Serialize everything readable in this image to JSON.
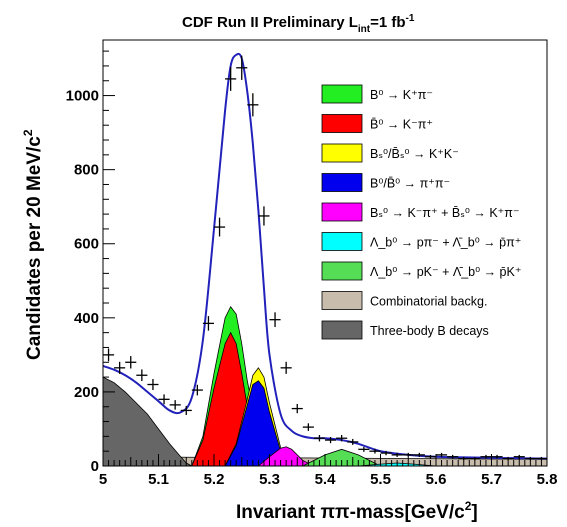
{
  "chart_data": {
    "type": "area",
    "title": {
      "main": "CDF Run II  Preliminary L",
      "sub": "int",
      "eq": "=1 fb",
      "sup": "-1"
    },
    "xlabel": {
      "main": "Invariant ππ-mass[GeV/c",
      "sup": "2",
      "close": "]"
    },
    "ylabel": {
      "main": "Candidates per 20 MeV/c",
      "sup": "2"
    },
    "xlim": [
      5.0,
      5.8
    ],
    "ylim": [
      0,
      1150
    ],
    "x_ticks": [
      5,
      5.1,
      5.2,
      5.3,
      5.4,
      5.5,
      5.6,
      5.7,
      5.8
    ],
    "x_tick_labels": [
      "5",
      "5.1",
      "5.2",
      "5.3",
      "5.4",
      "5.5",
      "5.6",
      "5.7",
      "5.8"
    ],
    "y_ticks": [
      0,
      200,
      400,
      600,
      800,
      1000
    ],
    "y_tick_labels": [
      "0",
      "200",
      "400",
      "600",
      "800",
      "1000"
    ],
    "grid": false,
    "legend_position": "right",
    "legend": [
      {
        "name": "B⁰ → K⁺π⁻",
        "color": "#22ee22"
      },
      {
        "name": "B̄⁰ → K⁻π⁺",
        "color": "#ff0000"
      },
      {
        "name": "Bₛ⁰/B̄ₛ⁰ → K⁺K⁻",
        "color": "#ffff00"
      },
      {
        "name": "B⁰/B̄⁰ → π⁺π⁻",
        "color": "#0000ee"
      },
      {
        "name": "Bₛ⁰ → K⁻π⁺ + B̄ₛ⁰ → K⁺π⁻",
        "color": "#ff00ff"
      },
      {
        "name": "Λ_b⁰ → pπ⁻ + Λ̄_b⁰ → p̄π⁺",
        "color": "#00ffff"
      },
      {
        "name": "Λ_b⁰ → pK⁻ + Λ̄_b⁰ → p̄K⁺",
        "color": "#55dd55"
      },
      {
        "name": "Combinatorial backg.",
        "color": "#c8bcac"
      },
      {
        "name": "Three-body B decays",
        "color": "#666666"
      }
    ],
    "fit_line_color": "#2222bb",
    "data_points": {
      "x": [
        5.01,
        5.03,
        5.05,
        5.07,
        5.09,
        5.11,
        5.13,
        5.15,
        5.17,
        5.19,
        5.21,
        5.23,
        5.25,
        5.27,
        5.29,
        5.31,
        5.33,
        5.35,
        5.37,
        5.39,
        5.41,
        5.43,
        5.45,
        5.47,
        5.49,
        5.51,
        5.53,
        5.55,
        5.57,
        5.59,
        5.61,
        5.63,
        5.65,
        5.67,
        5.69,
        5.71,
        5.73,
        5.75,
        5.77,
        5.79
      ],
      "y": [
        300,
        265,
        280,
        245,
        220,
        180,
        165,
        150,
        205,
        385,
        645,
        1045,
        1075,
        975,
        675,
        395,
        265,
        155,
        105,
        75,
        70,
        75,
        65,
        45,
        40,
        35,
        30,
        30,
        30,
        25,
        30,
        25,
        20,
        20,
        25,
        25,
        20,
        25,
        20,
        20
      ]
    },
    "components": {
      "three_body_b_decays": {
        "x": [
          5.0,
          5.02,
          5.04,
          5.06,
          5.08,
          5.1,
          5.12,
          5.14,
          5.15,
          5.16
        ],
        "y": [
          240,
          225,
          200,
          170,
          140,
          100,
          60,
          25,
          8,
          0
        ]
      },
      "combinatorial_backg": {
        "x": [
          5.0,
          5.8
        ],
        "y": [
          25,
          18
        ]
      },
      "b0_kpi_total": {
        "x": [
          5.16,
          5.18,
          5.2,
          5.22,
          5.23,
          5.24,
          5.25,
          5.26,
          5.28,
          5.3,
          5.32
        ],
        "y": [
          0,
          80,
          250,
          400,
          430,
          410,
          330,
          230,
          80,
          20,
          0
        ]
      },
      "b0bar_kmpi": {
        "x": [
          5.16,
          5.18,
          5.2,
          5.22,
          5.23,
          5.24,
          5.25,
          5.26,
          5.28,
          5.3,
          5.31
        ],
        "y": [
          0,
          70,
          210,
          330,
          360,
          330,
          250,
          160,
          50,
          10,
          0
        ]
      },
      "bs_kk": {
        "x": [
          5.22,
          5.24,
          5.26,
          5.27,
          5.28,
          5.29,
          5.3,
          5.32,
          5.34
        ],
        "y": [
          0,
          60,
          180,
          245,
          265,
          240,
          170,
          50,
          0
        ]
      },
      "b0_pipi": {
        "x": [
          5.22,
          5.24,
          5.26,
          5.27,
          5.28,
          5.29,
          5.3,
          5.32,
          5.34
        ],
        "y": [
          0,
          55,
          165,
          220,
          230,
          210,
          145,
          40,
          0
        ]
      },
      "bs_kpi": {
        "x": [
          5.28,
          5.3,
          5.32,
          5.33,
          5.34,
          5.36,
          5.38
        ],
        "y": [
          0,
          25,
          48,
          52,
          45,
          15,
          0
        ]
      },
      "lambda_b_ppi": {
        "x": [
          5.46,
          5.5,
          5.53,
          5.56,
          5.6
        ],
        "y": [
          0,
          5,
          8,
          5,
          0
        ]
      },
      "lambda_b_pk": {
        "x": [
          5.36,
          5.4,
          5.43,
          5.46,
          5.5
        ],
        "y": [
          0,
          30,
          45,
          30,
          0
        ]
      }
    },
    "fit_line": {
      "x": [
        5.0,
        5.02,
        5.04,
        5.06,
        5.08,
        5.1,
        5.12,
        5.14,
        5.16,
        5.18,
        5.2,
        5.22,
        5.23,
        5.24,
        5.25,
        5.26,
        5.27,
        5.28,
        5.29,
        5.3,
        5.32,
        5.34,
        5.36,
        5.38,
        5.4,
        5.43,
        5.46,
        5.5,
        5.55,
        5.6,
        5.7,
        5.8
      ],
      "y": [
        270,
        260,
        245,
        225,
        200,
        175,
        150,
        145,
        185,
        340,
        640,
        960,
        1080,
        1110,
        1100,
        1010,
        870,
        690,
        480,
        300,
        140,
        95,
        80,
        75,
        75,
        70,
        60,
        40,
        30,
        25,
        22,
        20
      ]
    }
  }
}
